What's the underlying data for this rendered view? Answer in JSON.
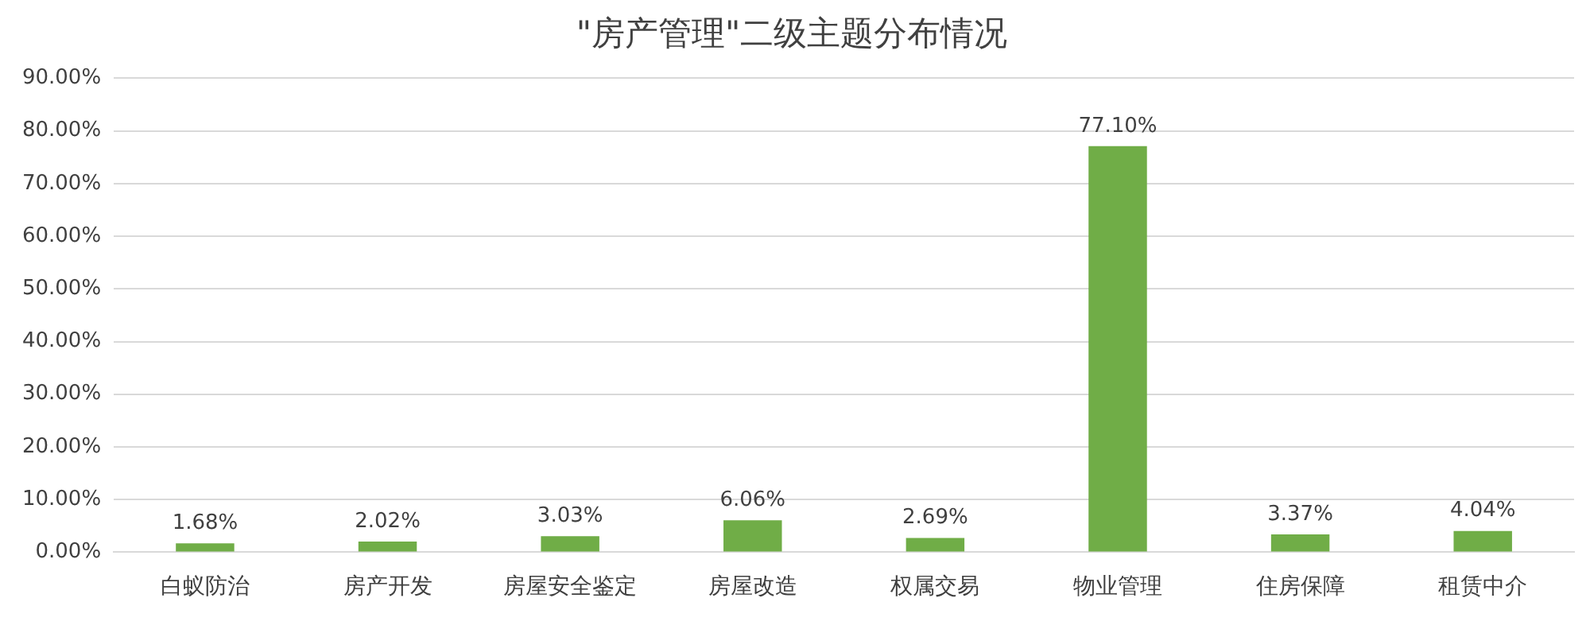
{
  "chart_data": {
    "type": "bar",
    "title": "\"房产管理\"二级主题分布情况",
    "categories": [
      "白蚁防治",
      "房产开发",
      "房屋安全鉴定",
      "房屋改造",
      "权属交易",
      "物业管理",
      "住房保障",
      "租赁中介"
    ],
    "values": [
      1.68,
      2.02,
      3.03,
      6.06,
      2.69,
      77.1,
      3.37,
      4.04
    ],
    "value_labels": [
      "1.68%",
      "2.02%",
      "3.03%",
      "6.06%",
      "2.69%",
      "77.10%",
      "3.37%",
      "4.04%"
    ],
    "color": "#70ad47",
    "ylim": [
      0,
      90
    ],
    "yticks": [
      {
        "value": 0,
        "label": "0.00%"
      },
      {
        "value": 10,
        "label": "10.00%"
      },
      {
        "value": 20,
        "label": "20.00%"
      },
      {
        "value": 30,
        "label": "30.00%"
      },
      {
        "value": 40,
        "label": "40.00%"
      },
      {
        "value": 50,
        "label": "50.00%"
      },
      {
        "value": 60,
        "label": "60.00%"
      },
      {
        "value": 70,
        "label": "70.00%"
      },
      {
        "value": 80,
        "label": "80.00%"
      },
      {
        "value": 90,
        "label": "90.00%"
      }
    ],
    "grid": "y"
  }
}
